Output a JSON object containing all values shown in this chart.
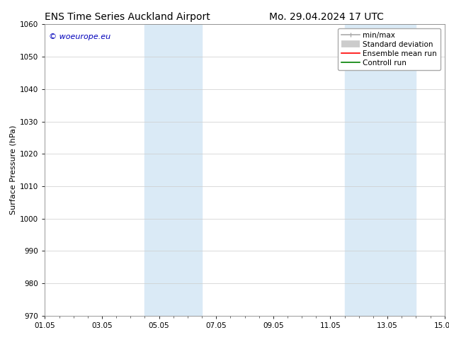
{
  "title_left": "ENS Time Series Auckland Airport",
  "title_right": "Mo. 29.04.2024 17 UTC",
  "ylabel": "Surface Pressure (hPa)",
  "ylim": [
    970,
    1060
  ],
  "yticks": [
    970,
    980,
    990,
    1000,
    1010,
    1020,
    1030,
    1040,
    1050,
    1060
  ],
  "xlim": [
    0,
    14
  ],
  "xtick_labels": [
    "01.05",
    "03.05",
    "05.05",
    "07.05",
    "09.05",
    "11.05",
    "13.05",
    "15.05"
  ],
  "xtick_positions": [
    0,
    2,
    4,
    6,
    8,
    10,
    12,
    14
  ],
  "shaded_bands": [
    {
      "x_start": 3.5,
      "x_end": 5.5
    },
    {
      "x_start": 10.5,
      "x_end": 13.0
    }
  ],
  "shaded_color": "#daeaf6",
  "background_color": "#ffffff",
  "grid_color": "#cccccc",
  "watermark_text": "© woeurope.eu",
  "watermark_color": "#0000bb",
  "legend_entries": [
    {
      "label": "min/max",
      "color": "#aaaaaa",
      "lw": 1.2
    },
    {
      "label": "Standard deviation",
      "color": "#cccccc",
      "lw": 6
    },
    {
      "label": "Ensemble mean run",
      "color": "red",
      "lw": 1.2
    },
    {
      "label": "Controll run",
      "color": "green",
      "lw": 1.2
    }
  ],
  "title_fontsize": 10,
  "axis_fontsize": 8,
  "tick_fontsize": 7.5,
  "legend_fontsize": 7.5,
  "watermark_fontsize": 8
}
